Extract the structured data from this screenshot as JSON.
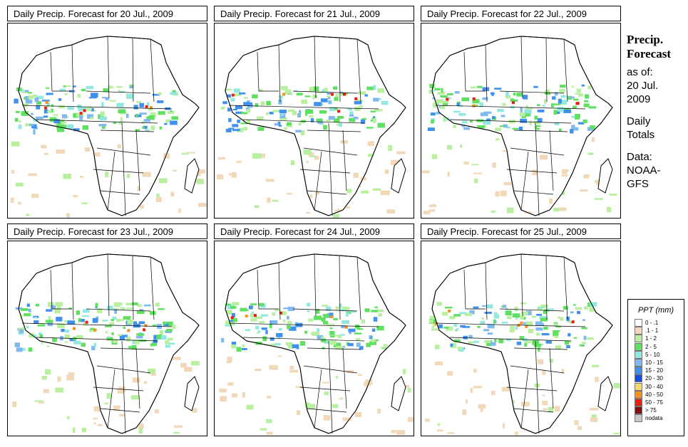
{
  "panels": [
    {
      "title": "Daily Precip. Forecast for  20 Jul., 2009"
    },
    {
      "title": "Daily Precip. Forecast for  21 Jul., 2009"
    },
    {
      "title": "Daily Precip. Forecast for  22 Jul., 2009"
    },
    {
      "title": "Daily Precip. Forecast for  23 Jul., 2009"
    },
    {
      "title": "Daily Precip. Forecast for  24 Jul., 2009"
    },
    {
      "title": "Daily Precip. Forecast for  25 Jul., 2009"
    }
  ],
  "side_info": {
    "title_line1": "Precip.",
    "title_line2": "Forecast",
    "asof_label": "as of:",
    "date_line1": "20 Jul.",
    "date_line2": "2009",
    "daily_line1": "Daily",
    "daily_line2": "Totals",
    "data_label": "Data:",
    "source_line1": "NOAA-",
    "source_line2": "GFS"
  },
  "legend": {
    "title": "PPT (mm)",
    "items": [
      {
        "label": "0 - .1",
        "color": "#ffffff"
      },
      {
        "label": ".1 - 1",
        "color": "#f0d8b8"
      },
      {
        "label": "1 - 2",
        "color": "#b8f0a0"
      },
      {
        "label": "2 - 5",
        "color": "#60e060"
      },
      {
        "label": "5 - 10",
        "color": "#90e8e0"
      },
      {
        "label": "10 - 15",
        "color": "#80b8f0"
      },
      {
        "label": "15 - 20",
        "color": "#4090f0"
      },
      {
        "label": "20 - 30",
        "color": "#1050e0"
      },
      {
        "label": "30 - 40",
        "color": "#f8d868"
      },
      {
        "label": "40 - 50",
        "color": "#f89020"
      },
      {
        "label": "50 - 75",
        "color": "#e82010"
      },
      {
        "label": "> 75",
        "color": "#801010"
      },
      {
        "label": "nodata",
        "color": "#c8c8c8"
      }
    ]
  }
}
